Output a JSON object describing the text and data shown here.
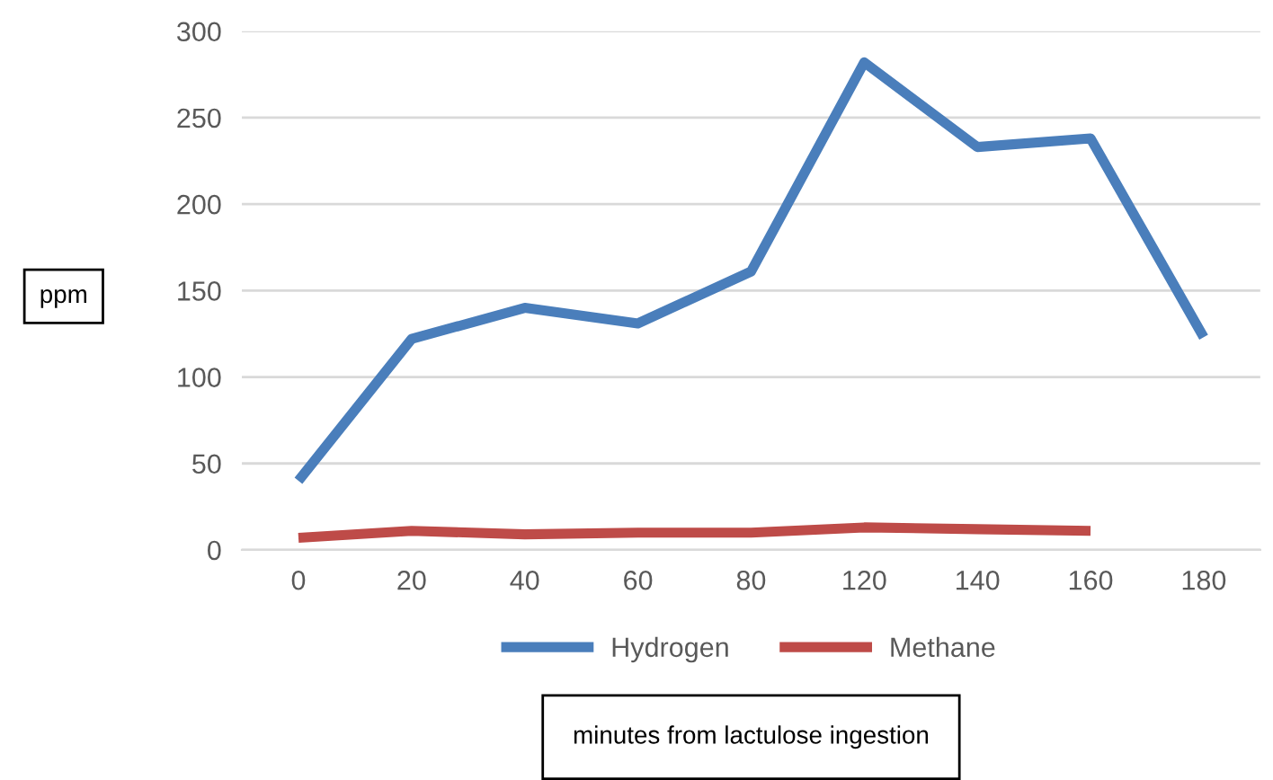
{
  "chart_data": {
    "type": "line",
    "categories": [
      "0",
      "20",
      "40",
      "60",
      "80",
      "120",
      "140",
      "160",
      "180"
    ],
    "series": [
      {
        "name": "Hydrogen",
        "color": "#4a7ebb",
        "values": [
          40,
          122,
          140,
          131,
          161,
          282,
          233,
          238,
          123
        ]
      },
      {
        "name": "Methane",
        "color": "#be4b48",
        "values": [
          7,
          11,
          9,
          10,
          10,
          13,
          12,
          11,
          null
        ]
      }
    ],
    "ylabel": "ppm",
    "annotations": [
      "minutes from lactulose ingestion"
    ],
    "ylim": [
      0,
      300
    ],
    "yticks": [
      0,
      50,
      100,
      150,
      200,
      250,
      300
    ],
    "grid": "y",
    "legend": "bottom",
    "marker": "none",
    "line_style": "solid"
  }
}
